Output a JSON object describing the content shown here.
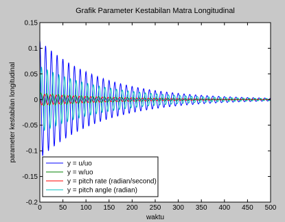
{
  "chart_data": {
    "type": "line",
    "title": "Grafik Parameter Kestabilan Matra Longitudinal",
    "xlabel": "waktu",
    "ylabel": "parameter kestabilan longitudinal",
    "xlim": [
      0,
      500
    ],
    "ylim": [
      -0.2,
      0.15
    ],
    "xticks": [
      "0",
      "50",
      "100",
      "150",
      "200",
      "250",
      "300",
      "350",
      "400",
      "450",
      "500"
    ],
    "yticks": [
      "0.15",
      "0.1",
      "0.05",
      "0",
      "-0.05",
      "-0.1",
      "-0.15",
      "-0.2"
    ],
    "grid": false,
    "legend_position": "bottom-left",
    "series": [
      {
        "name": "y = u/uo",
        "color": "#0000ff",
        "amplitude": 0.115,
        "decay": 0.0075,
        "period": 12.5,
        "phase": 1.57
      },
      {
        "name": "y = w/uo",
        "color": "#008000",
        "amplitude": 0.013,
        "decay": 0.006,
        "period": 12.5,
        "phase": 0.4
      },
      {
        "name": "y = pitch rate (radian/second)",
        "color": "#ff0000",
        "amplitude": 0.011,
        "decay": 0.006,
        "period": 12.5,
        "phase": 2.6
      },
      {
        "name": "y = pitch angle (radian)",
        "color": "#00bfbf",
        "amplitude": 0.065,
        "decay": 0.007,
        "period": 12.5,
        "phase": -0.3
      }
    ]
  }
}
